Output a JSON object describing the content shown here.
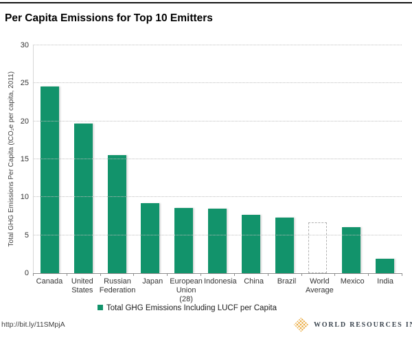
{
  "header": {
    "title": "Per Capita Emissions for Top 10 Emitters"
  },
  "chart_data": {
    "type": "bar",
    "title": "Per Capita Emissions for Top 10 Emitters",
    "xlabel": "",
    "ylabel": "Total GHG Emissions Per Capita (tCO₂e per capita, 2011)",
    "ylim": [
      0,
      30
    ],
    "yticks": [
      0,
      5,
      10,
      15,
      20,
      25,
      30
    ],
    "grid": "horizontal-dotted",
    "categories": [
      "Canada",
      "United States",
      "Russian Federation",
      "Japan",
      "European Union (28)",
      "Indonesia",
      "China",
      "Brazil",
      "World Average",
      "Mexico",
      "India"
    ],
    "values": [
      24.6,
      19.7,
      15.5,
      9.2,
      8.6,
      8.5,
      7.7,
      7.3,
      6.7,
      6.1,
      1.9
    ],
    "bar_color": "#12936B",
    "highlight_category": "World Average",
    "highlight_style": "white-fill-dashed-outline",
    "legend_position": "bottom-center",
    "legend": [
      {
        "label": "Total GHG Emissions Including LUCF per Capita",
        "swatch_color": "#12936B"
      }
    ]
  },
  "footer": {
    "source_url": "http://bit.ly/11SMpjA",
    "brand": {
      "icon": "wri-diamond-lattice-icon",
      "icon_color": "#E9A83A",
      "name": "WORLD RESOURCES INST",
      "name_color": "#39434D"
    }
  }
}
